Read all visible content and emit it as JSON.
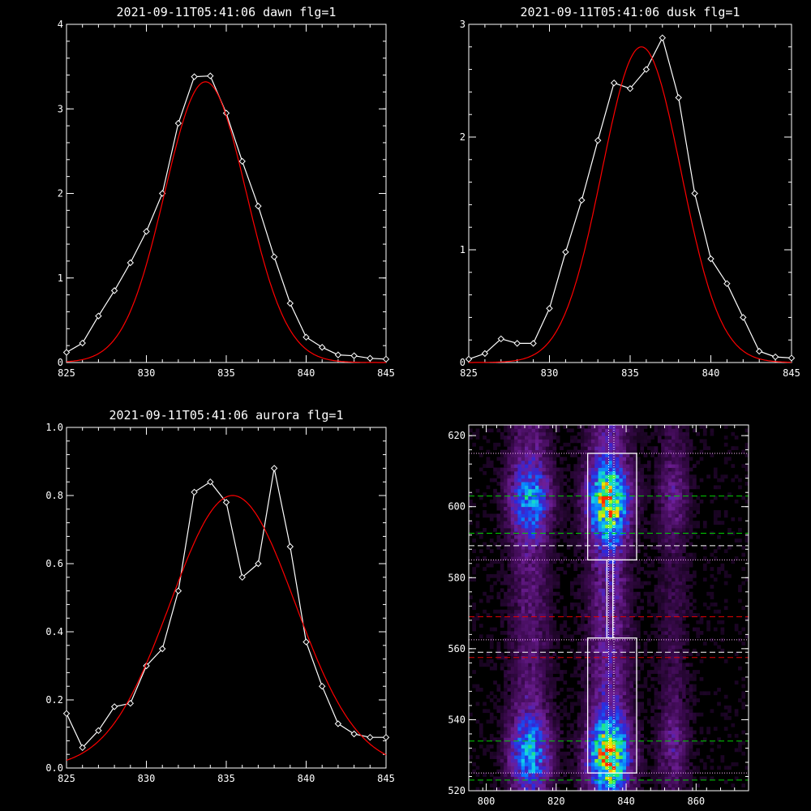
{
  "chart_data": [
    {
      "type": "line",
      "title": "2021-09-11T05:41:06 dawn flg=1",
      "xlim": [
        825,
        845
      ],
      "ylim": [
        0,
        4
      ],
      "xticks": [
        825,
        830,
        835,
        840,
        845
      ],
      "yticks": [
        0,
        1,
        2,
        3,
        4
      ],
      "xtick_labels": [
        "825",
        "830",
        "835",
        "840",
        "845"
      ],
      "ytick_labels": [
        "0",
        "1",
        "2",
        "3",
        "4"
      ],
      "grid": false,
      "series": [
        {
          "color": "#ffffff",
          "marker": "diamond",
          "x": [
            825,
            826,
            827,
            828,
            829,
            830,
            831,
            832,
            833,
            834,
            835,
            836,
            837,
            838,
            839,
            840,
            841,
            842,
            843,
            844,
            845
          ],
          "y": [
            0.12,
            0.23,
            0.55,
            0.85,
            1.18,
            1.55,
            2.0,
            2.83,
            3.38,
            3.39,
            2.95,
            2.38,
            1.85,
            1.25,
            0.7,
            0.3,
            0.18,
            0.09,
            0.08,
            0.05,
            0.04
          ]
        },
        {
          "color": "#ff0000",
          "fit": "gaussian",
          "amp": 3.32,
          "mu": 833.7,
          "sigma": 2.55
        }
      ]
    },
    {
      "type": "line",
      "title": "2021-09-11T05:41:06 dusk flg=1",
      "xlim": [
        825,
        845
      ],
      "ylim": [
        0,
        3
      ],
      "xticks": [
        825,
        830,
        835,
        840,
        845
      ],
      "yticks": [
        0,
        1,
        2,
        3
      ],
      "xtick_labels": [
        "825",
        "830",
        "835",
        "840",
        "845"
      ],
      "ytick_labels": [
        "0",
        "1",
        "2",
        "3"
      ],
      "grid": false,
      "series": [
        {
          "color": "#ffffff",
          "marker": "diamond",
          "x": [
            825,
            826,
            827,
            828,
            829,
            830,
            831,
            832,
            833,
            834,
            835,
            836,
            837,
            838,
            839,
            840,
            841,
            842,
            843,
            844,
            845
          ],
          "y": [
            0.03,
            0.08,
            0.21,
            0.17,
            0.17,
            0.48,
            0.98,
            1.44,
            1.97,
            2.48,
            2.43,
            2.6,
            2.88,
            2.35,
            1.5,
            0.92,
            0.7,
            0.4,
            0.1,
            0.05,
            0.04
          ]
        },
        {
          "color": "#ff0000",
          "fit": "gaussian",
          "amp": 2.8,
          "mu": 835.7,
          "sigma": 2.45
        }
      ]
    },
    {
      "type": "line",
      "title": "2021-09-11T05:41:06 aurora flg=1",
      "xlim": [
        825,
        845
      ],
      "ylim": [
        0,
        1
      ],
      "xticks": [
        825,
        830,
        835,
        840,
        845
      ],
      "yticks": [
        0,
        0.2,
        0.4,
        0.6,
        0.8,
        1.0
      ],
      "xtick_labels": [
        "825",
        "830",
        "835",
        "840",
        "845"
      ],
      "ytick_labels": [
        "0.0",
        "0.2",
        "0.4",
        "0.6",
        "0.8",
        "1.0"
      ],
      "grid": false,
      "series": [
        {
          "color": "#ffffff",
          "marker": "diamond",
          "x": [
            825,
            826,
            827,
            828,
            829,
            830,
            831,
            832,
            833,
            834,
            835,
            836,
            837,
            838,
            839,
            840,
            841,
            842,
            843,
            844,
            845
          ],
          "y": [
            0.16,
            0.06,
            0.11,
            0.18,
            0.19,
            0.3,
            0.35,
            0.52,
            0.81,
            0.84,
            0.78,
            0.56,
            0.6,
            0.88,
            0.65,
            0.37,
            0.24,
            0.13,
            0.1,
            0.09,
            0.09
          ]
        },
        {
          "color": "#ff0000",
          "fit": "gaussian",
          "amp": 0.8,
          "mu": 835.4,
          "sigma": 3.9
        }
      ]
    },
    {
      "type": "heatmap",
      "title": "",
      "xlim": [
        795,
        875
      ],
      "ylim": [
        520,
        623
      ],
      "xticks": [
        800,
        820,
        840,
        860
      ],
      "yticks": [
        520,
        540,
        560,
        580,
        600,
        620
      ],
      "xtick_labels": [
        "800",
        "820",
        "840",
        "860"
      ],
      "ytick_labels": [
        "520",
        "540",
        "560",
        "580",
        "600",
        "620"
      ],
      "colormap": [
        "#000000",
        "#3c0a50",
        "#6e1e96",
        "#2d28dc",
        "#0a78ff",
        "#14d2e6",
        "#28f050",
        "#f0f000",
        "#ff2800"
      ],
      "bands": [
        {
          "x_center": 812.5,
          "x_width": 4.0,
          "strength": 0.5,
          "peaks": [
            [
              602,
              0.85
            ],
            [
              531,
              0.9
            ]
          ]
        },
        {
          "x_center": 835,
          "x_width": 4.0,
          "strength": 0.75,
          "peaks": [
            [
              601,
              1.0
            ],
            [
              530,
              1.0
            ]
          ]
        },
        {
          "x_center": 853.5,
          "x_width": 3.0,
          "strength": 0.28,
          "peaks": [
            [
              603,
              0.5
            ],
            [
              533,
              0.5
            ]
          ]
        }
      ],
      "boxes": [
        {
          "color": "#ffffff",
          "x": [
            829,
            843
          ],
          "y": [
            585,
            615
          ]
        },
        {
          "color": "#ffffff",
          "x": [
            829,
            843
          ],
          "y": [
            525,
            563
          ]
        },
        {
          "color": "#ffffff",
          "x": [
            834.5,
            836.2
          ],
          "y": [
            563,
            585
          ]
        }
      ],
      "hlines": [
        {
          "y": 615,
          "color": "#ffc0ff",
          "style": "dotted"
        },
        {
          "y": 585,
          "color": "#ffc0ff",
          "style": "dotted"
        },
        {
          "y": 562.5,
          "color": "#ffc0ff",
          "style": "dotted"
        },
        {
          "y": 525,
          "color": "#ffc0ff",
          "style": "dotted"
        },
        {
          "y": 603,
          "color": "#00d000",
          "style": "dashed"
        },
        {
          "y": 592.5,
          "color": "#00d000",
          "style": "dashed"
        },
        {
          "y": 534,
          "color": "#00d000",
          "style": "dashed"
        },
        {
          "y": 523,
          "color": "#00d000",
          "style": "dashed"
        },
        {
          "y": 589,
          "color": "#ffffff",
          "style": "dashed"
        },
        {
          "y": 559,
          "color": "#ffffff",
          "style": "dashed"
        },
        {
          "y": 569,
          "color": "#e00000",
          "style": "dashed"
        },
        {
          "y": 557.5,
          "color": "#e00000",
          "style": "dashed"
        }
      ],
      "vlines": [
        {
          "x": 835,
          "color": "#ffffff",
          "style": "dotted"
        },
        {
          "x": 836.5,
          "color": "#ffffff",
          "style": "dotted"
        }
      ]
    }
  ]
}
